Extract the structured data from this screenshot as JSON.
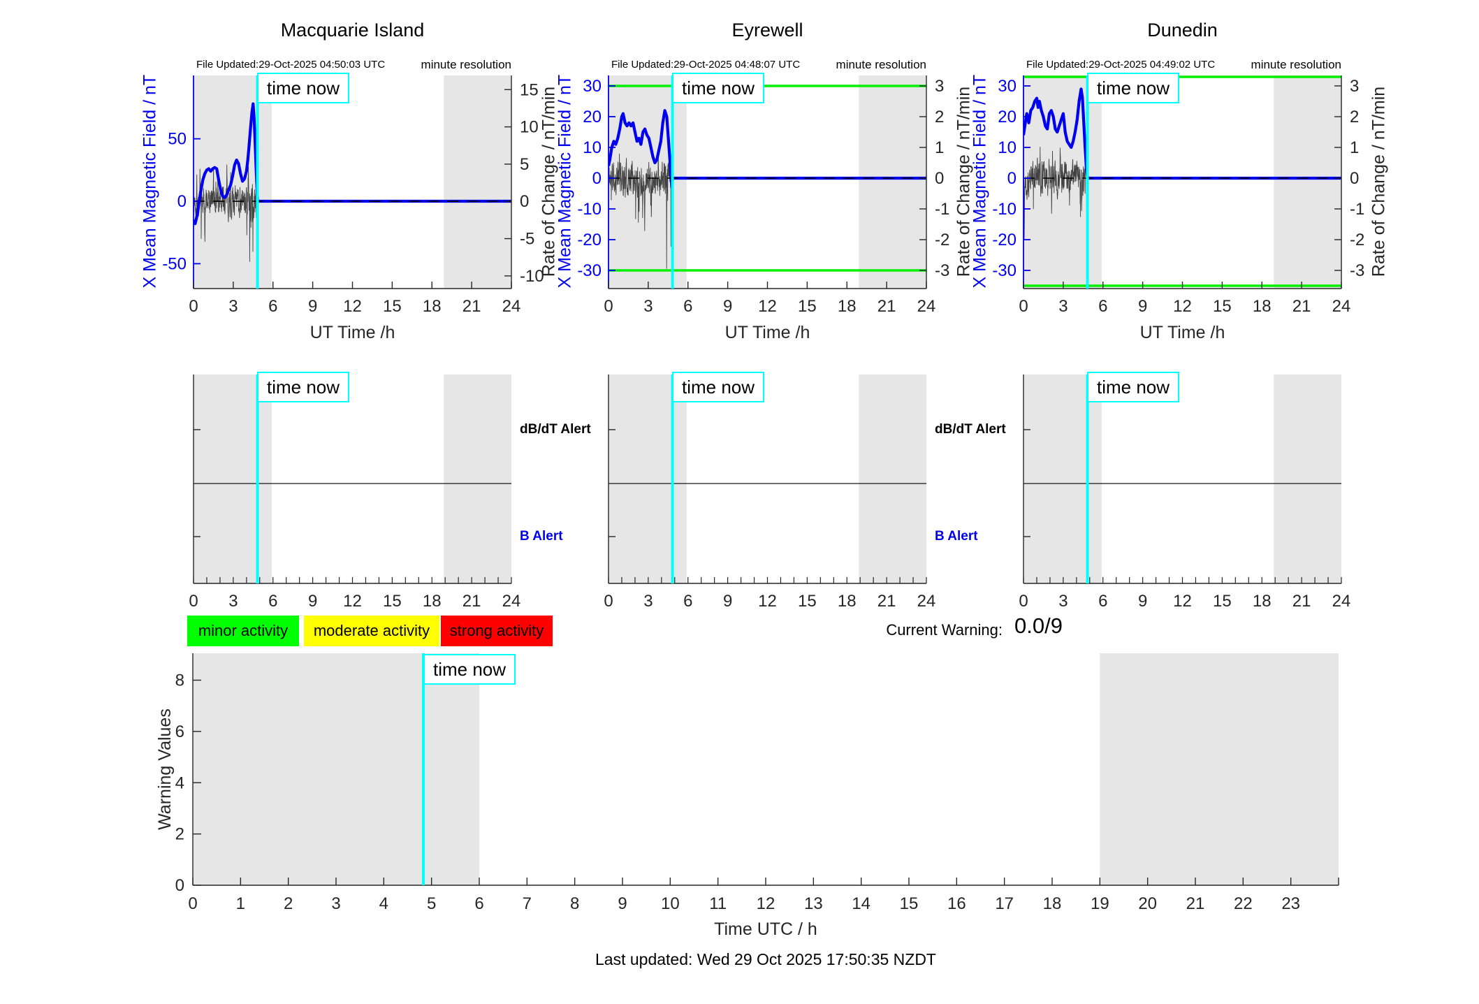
{
  "time_now_label": "time now",
  "colors": {
    "field_blue": "#0000ee",
    "threshold_green": "#00ef00",
    "time_now_cyan": "#00ffff",
    "night_band_gray": "#e6e6e6",
    "axis_dark": "#262626",
    "rate_trace_black": "#1a1a1a"
  },
  "legend": [
    {
      "label": "minor activity",
      "color": "#00ff00"
    },
    {
      "label": "moderate activity",
      "color": "#ffff00"
    },
    {
      "label": "strong activity",
      "color": "#ff0000"
    }
  ],
  "current_warning": {
    "label": "Current Warning:",
    "value": "0.0/9"
  },
  "footer": "Last updated: Wed 29 Oct 2025 17:50:35 NZDT",
  "chart_data": [
    {
      "type": "line",
      "title": "Macquarie Island",
      "file_updated": "File Updated:29-Oct-2025 04:50:03 UTC",
      "note": "minute resolution",
      "xlabel": "UT Time /h",
      "x_range": [
        0,
        24
      ],
      "x_ticks": [
        0,
        3,
        6,
        9,
        12,
        15,
        18,
        21,
        24
      ],
      "left_axis": {
        "label": "X Mean Magnetic Field / nT",
        "ticks": [
          50,
          0,
          -50
        ],
        "range": [
          -69.9,
          100.7
        ]
      },
      "right_axis": {
        "label": "Rate of Change / nT/min",
        "ticks": [
          15,
          10,
          5,
          0,
          -5,
          -10
        ],
        "range": [
          -11.7,
          16.9
        ]
      },
      "green_thresholds": [],
      "time_now_h": 4.83,
      "night_shading_h": [
        [
          0,
          5.9
        ],
        [
          18.9,
          24
        ]
      ],
      "flat_value_after_time_now": 0,
      "mean_field_series": [
        [
          0,
          -15
        ],
        [
          0.12,
          -18
        ],
        [
          0.3,
          -10
        ],
        [
          0.5,
          5
        ],
        [
          0.7,
          17
        ],
        [
          0.85,
          22
        ],
        [
          1.0,
          25
        ],
        [
          1.15,
          26
        ],
        [
          1.3,
          24
        ],
        [
          1.45,
          26
        ],
        [
          1.6,
          27
        ],
        [
          1.75,
          26
        ],
        [
          1.9,
          17
        ],
        [
          2.05,
          9
        ],
        [
          2.2,
          4
        ],
        [
          2.35,
          3
        ],
        [
          2.5,
          5
        ],
        [
          2.65,
          9
        ],
        [
          2.8,
          13
        ],
        [
          2.95,
          20
        ],
        [
          3.1,
          29
        ],
        [
          3.25,
          33
        ],
        [
          3.4,
          30
        ],
        [
          3.55,
          22
        ],
        [
          3.7,
          16
        ],
        [
          3.85,
          18
        ],
        [
          4.0,
          24
        ],
        [
          4.1,
          33
        ],
        [
          4.2,
          45
        ],
        [
          4.3,
          58
        ],
        [
          4.4,
          70
        ],
        [
          4.5,
          78
        ],
        [
          4.58,
          66
        ],
        [
          4.66,
          45
        ],
        [
          4.74,
          22
        ],
        [
          4.8,
          8
        ],
        [
          4.85,
          0
        ]
      ],
      "rate_noise": {
        "seed": 7,
        "amplitude": 9,
        "ar": 0.55,
        "spike_prob": 0.05,
        "spike_window": [
          4.2,
          4.8
        ],
        "spike_gain": 1.8,
        "step_h": 0.012
      }
    },
    {
      "type": "line",
      "title": "Eyrewell",
      "file_updated": "File Updated:29-Oct-2025 04:48:07 UTC",
      "note": "minute resolution",
      "xlabel": "UT Time /h",
      "x_range": [
        0,
        24
      ],
      "x_ticks": [
        0,
        3,
        6,
        9,
        12,
        15,
        18,
        21,
        24
      ],
      "left_axis": {
        "label": "X Mean Magnetic Field / nT",
        "ticks": [
          30,
          20,
          10,
          0,
          -10,
          -20,
          -30
        ],
        "range": [
          -35.9,
          33.4
        ]
      },
      "right_axis": {
        "label": "Rate of Change / nT/min",
        "ticks": [
          3,
          2,
          1,
          0,
          -1,
          -2,
          -3
        ],
        "range": [
          -3.59,
          3.34
        ]
      },
      "green_thresholds": [
        30,
        -30
      ],
      "time_now_h": 4.83,
      "night_shading_h": [
        [
          0,
          5.9
        ],
        [
          18.9,
          24
        ]
      ],
      "flat_value_after_time_now": 0,
      "mean_field_series": [
        [
          0,
          4
        ],
        [
          0.1,
          6
        ],
        [
          0.25,
          10
        ],
        [
          0.4,
          12
        ],
        [
          0.55,
          11
        ],
        [
          0.7,
          13
        ],
        [
          0.85,
          16
        ],
        [
          1.0,
          20
        ],
        [
          1.1,
          21
        ],
        [
          1.25,
          18
        ],
        [
          1.4,
          17
        ],
        [
          1.55,
          18
        ],
        [
          1.7,
          17
        ],
        [
          1.85,
          18
        ],
        [
          2.0,
          15
        ],
        [
          2.15,
          12
        ],
        [
          2.3,
          13
        ],
        [
          2.45,
          11
        ],
        [
          2.6,
          15
        ],
        [
          2.75,
          16
        ],
        [
          2.9,
          14
        ],
        [
          3.05,
          13
        ],
        [
          3.2,
          10
        ],
        [
          3.35,
          7
        ],
        [
          3.5,
          5
        ],
        [
          3.65,
          6
        ],
        [
          3.8,
          9
        ],
        [
          3.95,
          12
        ],
        [
          4.1,
          18
        ],
        [
          4.25,
          22
        ],
        [
          4.4,
          20
        ],
        [
          4.5,
          14
        ],
        [
          4.6,
          8
        ],
        [
          4.7,
          2
        ],
        [
          4.78,
          -3
        ],
        [
          4.85,
          0
        ]
      ],
      "rate_noise": {
        "seed": 11,
        "amplitude": 4.2,
        "ar": 0.55,
        "spike_prob": 0.06,
        "spike_window": [
          4.25,
          4.8
        ],
        "spike_gain": 2.4,
        "step_h": 0.012
      }
    },
    {
      "type": "line",
      "title": "Dunedin",
      "file_updated": "File Updated:29-Oct-2025 04:49:02 UTC",
      "note": "minute resolution",
      "xlabel": "UT Time /h",
      "x_range": [
        0,
        24
      ],
      "x_ticks": [
        0,
        3,
        6,
        9,
        12,
        15,
        18,
        21,
        24
      ],
      "left_axis": {
        "label": "X Mean Magnetic Field / nT",
        "ticks": [
          30,
          20,
          10,
          0,
          -10,
          -20,
          -30
        ],
        "range": [
          -35.9,
          33.4
        ]
      },
      "right_axis": {
        "label": "Rate of Change / nT/min",
        "ticks": [
          3,
          2,
          1,
          0,
          -1,
          -2,
          -3
        ],
        "range": [
          -3.59,
          3.34
        ]
      },
      "green_thresholds": [
        35,
        -35
      ],
      "time_now_h": 4.83,
      "night_shading_h": [
        [
          0,
          5.9
        ],
        [
          18.9,
          24
        ]
      ],
      "flat_value_after_time_now": 0,
      "mean_field_series": [
        [
          0,
          14
        ],
        [
          0.1,
          17
        ],
        [
          0.25,
          21
        ],
        [
          0.4,
          18
        ],
        [
          0.55,
          22
        ],
        [
          0.7,
          23
        ],
        [
          0.85,
          25
        ],
        [
          1.0,
          26
        ],
        [
          1.1,
          23
        ],
        [
          1.2,
          25
        ],
        [
          1.35,
          22
        ],
        [
          1.5,
          20
        ],
        [
          1.65,
          17
        ],
        [
          1.8,
          16
        ],
        [
          1.95,
          21
        ],
        [
          2.1,
          22
        ],
        [
          2.25,
          20
        ],
        [
          2.4,
          16
        ],
        [
          2.55,
          15
        ],
        [
          2.7,
          17
        ],
        [
          2.85,
          19
        ],
        [
          3.0,
          21
        ],
        [
          3.15,
          15
        ],
        [
          3.3,
          12
        ],
        [
          3.45,
          11
        ],
        [
          3.6,
          10
        ],
        [
          3.75,
          12
        ],
        [
          3.9,
          15
        ],
        [
          4.05,
          19
        ],
        [
          4.2,
          25
        ],
        [
          4.35,
          29
        ],
        [
          4.45,
          26
        ],
        [
          4.55,
          18
        ],
        [
          4.65,
          10
        ],
        [
          4.75,
          3
        ],
        [
          4.85,
          0
        ]
      ],
      "rate_noise": {
        "seed": 13,
        "amplitude": 4.2,
        "ar": 0.55,
        "spike_prob": 0.06,
        "spike_window": [
          4.25,
          4.8
        ],
        "spike_gain": 2.4,
        "step_h": 0.012
      }
    },
    {
      "type": "alert-timeline",
      "station": "Macquarie Island",
      "x_range": [
        0,
        24
      ],
      "x_ticks": [
        0,
        3,
        6,
        9,
        12,
        15,
        18,
        21,
        24
      ],
      "minor_tick_step_h": 1,
      "rows": [
        {
          "label": "dB/dT Alert",
          "y_frac_from_bottom": 0.736
        },
        {
          "label": "B Alert",
          "y_frac_from_bottom": 0.224
        }
      ],
      "divider_y_frac_from_bottom": 0.478,
      "time_now_h": 4.83,
      "night_shading_h": [
        [
          0,
          5.9
        ],
        [
          18.9,
          24
        ]
      ],
      "events": []
    },
    {
      "type": "alert-timeline",
      "station": "Eyrewell",
      "x_range": [
        0,
        24
      ],
      "x_ticks": [
        0,
        3,
        6,
        9,
        12,
        15,
        18,
        21,
        24
      ],
      "minor_tick_step_h": 1,
      "rows": [
        {
          "label": "dB/dT Alert",
          "y_frac_from_bottom": 0.736
        },
        {
          "label": "B Alert",
          "y_frac_from_bottom": 0.224
        }
      ],
      "divider_y_frac_from_bottom": 0.478,
      "time_now_h": 4.83,
      "night_shading_h": [
        [
          0,
          5.9
        ],
        [
          18.9,
          24
        ]
      ],
      "events": []
    },
    {
      "type": "alert-timeline",
      "station": "Dunedin",
      "x_range": [
        0,
        24
      ],
      "x_ticks": [
        0,
        3,
        6,
        9,
        12,
        15,
        18,
        21,
        24
      ],
      "minor_tick_step_h": 1,
      "rows": [
        {
          "label": "dB/dT Alert",
          "y_frac_from_bottom": 0.736
        },
        {
          "label": "B Alert",
          "y_frac_from_bottom": 0.224
        }
      ],
      "divider_y_frac_from_bottom": 0.478,
      "time_now_h": 4.83,
      "night_shading_h": [
        [
          0,
          5.9
        ],
        [
          18.9,
          24
        ]
      ],
      "events": []
    },
    {
      "type": "line",
      "title": "Warning Values",
      "ylabel": "Warning Values",
      "xlabel": "Time UTC / h",
      "x_range": [
        0,
        24
      ],
      "x_ticks": [
        0,
        1,
        2,
        3,
        4,
        5,
        6,
        7,
        8,
        9,
        10,
        11,
        12,
        13,
        14,
        15,
        16,
        17,
        18,
        19,
        20,
        21,
        22,
        23
      ],
      "y_range": [
        0,
        9.05
      ],
      "y_ticks": [
        0,
        2,
        4,
        6,
        8
      ],
      "time_now_h": 4.83,
      "night_shading_h": [
        [
          0,
          6
        ],
        [
          19,
          24
        ]
      ],
      "series": [],
      "current_warning_value": "0.0/9"
    }
  ]
}
